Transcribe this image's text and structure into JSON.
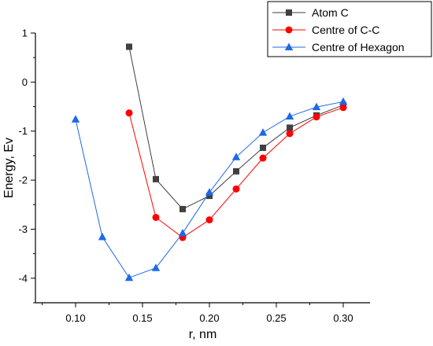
{
  "chart_data": {
    "type": "line",
    "xlabel": "r, nm",
    "ylabel": "Energy, Ev",
    "xlim": [
      0.07,
      0.32
    ],
    "ylim": [
      -4.5,
      1.0
    ],
    "x_ticks": [
      0.1,
      0.15,
      0.2,
      0.25,
      0.3
    ],
    "x_tick_labels": [
      "0.10",
      "0.15",
      "0.20",
      "0.25",
      "0.30"
    ],
    "y_ticks": [
      1,
      0,
      -1,
      -2,
      -3,
      -4
    ],
    "y_tick_labels": [
      "1",
      "0",
      "-1",
      "-2",
      "-3",
      "-4"
    ],
    "grid": false,
    "legend_position": "top-right",
    "series": [
      {
        "name": "Atom C",
        "color": "#404040",
        "marker": "square",
        "x": [
          0.14,
          0.16,
          0.18,
          0.2,
          0.22,
          0.24,
          0.26,
          0.28,
          0.3
        ],
        "y": [
          0.72,
          -1.98,
          -2.59,
          -2.32,
          -1.82,
          -1.34,
          -0.93,
          -0.68,
          -0.47
        ]
      },
      {
        "name": "Centre of C-C",
        "color": "#ff0000",
        "marker": "circle",
        "x": [
          0.14,
          0.16,
          0.18,
          0.2,
          0.22,
          0.24,
          0.26,
          0.28,
          0.3
        ],
        "y": [
          -0.63,
          -2.76,
          -3.17,
          -2.81,
          -2.18,
          -1.55,
          -1.05,
          -0.71,
          -0.52
        ]
      },
      {
        "name": "Centre of Hexagon",
        "color": "#1f68e8",
        "marker": "triangle",
        "x": [
          0.1,
          0.12,
          0.14,
          0.16,
          0.18,
          0.2,
          0.22,
          0.24,
          0.26,
          0.28,
          0.3
        ],
        "y": [
          -0.76,
          -3.16,
          -3.99,
          -3.79,
          -3.08,
          -2.25,
          -1.53,
          -1.03,
          -0.7,
          -0.51,
          -0.4
        ]
      }
    ]
  }
}
